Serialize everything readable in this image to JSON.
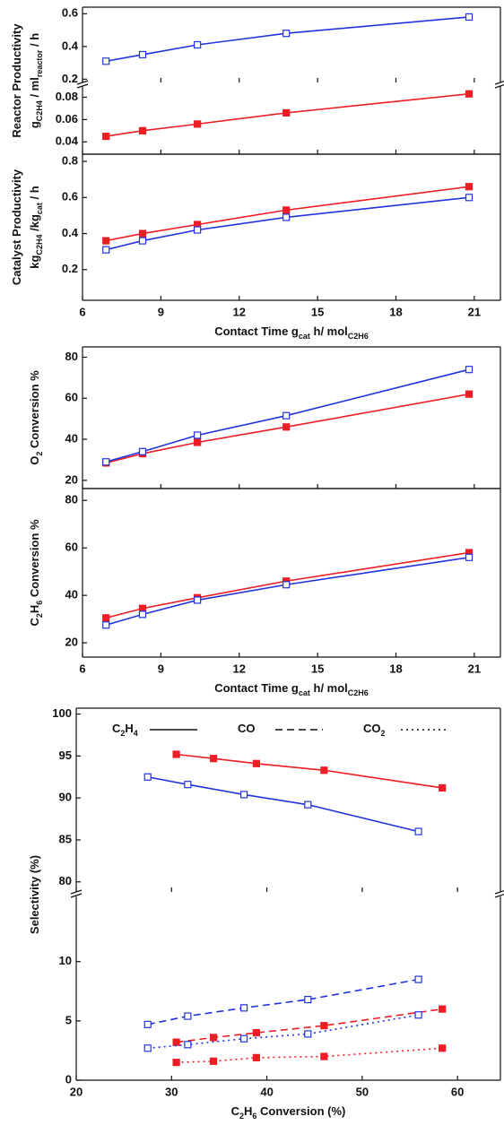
{
  "chart_data": [
    {
      "type": "line",
      "xlim": [
        6,
        22
      ],
      "xticks": [
        6,
        9,
        12,
        15,
        18,
        21
      ],
      "ylim": [
        0.18,
        0.64
      ],
      "yticks": [
        0.2,
        0.4,
        0.6
      ],
      "ylabel": [
        [
          {
            "text": "Reactor Productivity"
          }
        ],
        [
          {
            "text": "g"
          },
          {
            "text": "C2H4",
            "sub": true
          },
          {
            "text": " / ml"
          },
          {
            "text": "reactor",
            "sub": true
          },
          {
            "text": " / h"
          }
        ]
      ],
      "x": [
        6.9,
        8.3,
        10.4,
        13.8,
        20.8
      ],
      "series": [
        {
          "color": "#2233dd",
          "marker": "square-open",
          "dash": "solid",
          "values": [
            0.31,
            0.35,
            0.41,
            0.48,
            0.58
          ]
        }
      ]
    },
    {
      "type": "line",
      "xlim": [
        6,
        22
      ],
      "xticks": [
        6,
        9,
        12,
        15,
        18,
        21
      ],
      "ylim": [
        0.029,
        0.09
      ],
      "yticks": [
        0.04,
        0.06,
        0.08
      ],
      "x": [
        6.9,
        8.3,
        10.4,
        13.8,
        20.8
      ],
      "series": [
        {
          "color": "#ee1c25",
          "marker": "square-filled",
          "dash": "solid",
          "values": [
            0.045,
            0.05,
            0.056,
            0.066,
            0.083
          ]
        }
      ]
    },
    {
      "type": "line",
      "xlim": [
        6,
        22
      ],
      "xticks": [
        6,
        9,
        12,
        15,
        18,
        21
      ],
      "ylim": [
        0.03,
        0.84
      ],
      "yticks": [
        0.2,
        0.4,
        0.6,
        0.8
      ],
      "ylabel": [
        [
          {
            "text": "Catalyst Productivity"
          }
        ],
        [
          {
            "text": "kg"
          },
          {
            "text": "C2H4",
            "sub": true
          },
          {
            "text": " /kg"
          },
          {
            "text": "cat",
            "sub": true
          },
          {
            "text": " / h"
          }
        ]
      ],
      "xlabel": [
        {
          "text": "Contact Time g"
        },
        {
          "text": "cat",
          "sub": true
        },
        {
          "text": " h/ mol"
        },
        {
          "text": "C2H6",
          "sub": true
        }
      ],
      "x": [
        6.9,
        8.3,
        10.4,
        13.8,
        20.8
      ],
      "series": [
        {
          "color": "#ee1c25",
          "marker": "square-filled",
          "dash": "solid",
          "values": [
            0.36,
            0.4,
            0.45,
            0.53,
            0.66
          ]
        },
        {
          "color": "#2233dd",
          "marker": "square-open",
          "dash": "solid",
          "values": [
            0.31,
            0.36,
            0.42,
            0.49,
            0.6
          ]
        }
      ]
    },
    {
      "type": "line",
      "xlim": [
        6,
        22
      ],
      "xticks": [
        6,
        9,
        12,
        15,
        18,
        21
      ],
      "ylim": [
        16,
        85
      ],
      "yticks": [
        20,
        40,
        60,
        80
      ],
      "ylabel": [
        [
          {
            "text": "O"
          },
          {
            "text": "2",
            "sub": true
          },
          {
            "text": " Conversion  %"
          }
        ]
      ],
      "x": [
        6.9,
        8.3,
        10.4,
        13.8,
        20.8
      ],
      "series": [
        {
          "color": "#ee1c25",
          "marker": "square-filled",
          "dash": "solid",
          "values": [
            28.5,
            33,
            38.5,
            46,
            62
          ]
        },
        {
          "color": "#2233dd",
          "marker": "square-open",
          "dash": "solid",
          "values": [
            29,
            34,
            42,
            51.5,
            74
          ]
        }
      ]
    },
    {
      "type": "line",
      "xlim": [
        6,
        22
      ],
      "xticks": [
        6,
        9,
        12,
        15,
        18,
        21
      ],
      "ylim": [
        14,
        85
      ],
      "yticks": [
        20,
        40,
        60,
        80
      ],
      "ylabel": [
        [
          {
            "text": "C"
          },
          {
            "text": "2",
            "sub": true
          },
          {
            "text": "H"
          },
          {
            "text": "6",
            "sub": true
          },
          {
            "text": " Conversion  %"
          }
        ]
      ],
      "xlabel": [
        {
          "text": "Contact Time g"
        },
        {
          "text": "cat",
          "sub": true
        },
        {
          "text": " h/ mol"
        },
        {
          "text": "C2H6",
          "sub": true
        }
      ],
      "x": [
        6.9,
        8.3,
        10.4,
        13.8,
        20.8
      ],
      "series": [
        {
          "color": "#ee1c25",
          "marker": "square-filled",
          "dash": "solid",
          "values": [
            30.5,
            34.5,
            39,
            46,
            58
          ]
        },
        {
          "color": "#2233dd",
          "marker": "square-open",
          "dash": "solid",
          "values": [
            27.5,
            32,
            38,
            44.5,
            56
          ]
        }
      ]
    },
    {
      "type": "line",
      "xlim": [
        20,
        64.5
      ],
      "xticks": [
        20,
        30,
        40,
        50,
        60
      ],
      "ylim": [
        78.8,
        100.7
      ],
      "yticks": [
        80,
        85,
        90,
        95,
        100
      ],
      "ylabel": [
        [
          {
            "text": "Selectivity (%)"
          }
        ]
      ],
      "legend": [
        {
          "label": [
            {
              "text": "C"
            },
            {
              "text": "2",
              "sub": true
            },
            {
              "text": "H"
            },
            {
              "text": "4",
              "sub": true
            }
          ],
          "dash": "solid"
        },
        {
          "label": [
            {
              "text": "CO"
            }
          ],
          "dash": "dashed"
        },
        {
          "label": [
            {
              "text": "CO"
            },
            {
              "text": "2",
              "sub": true
            }
          ],
          "dash": "dotted"
        }
      ],
      "series": [
        {
          "color": "#ee1c25",
          "marker": "square-filled",
          "dash": "solid",
          "x": [
            30.5,
            34.4,
            38.9,
            46.0,
            58.4
          ],
          "values": [
            95.2,
            94.7,
            94.1,
            93.3,
            91.2
          ]
        },
        {
          "color": "#2233dd",
          "marker": "square-open",
          "dash": "solid",
          "x": [
            27.5,
            31.7,
            37.6,
            44.3,
            55.9
          ],
          "values": [
            92.5,
            91.6,
            90.4,
            89.2,
            86.0
          ]
        }
      ]
    },
    {
      "type": "line",
      "xlim": [
        20,
        64.5
      ],
      "xticks": [
        20,
        30,
        40,
        50,
        60
      ],
      "ylim": [
        0,
        15.5
      ],
      "yticks": [
        0,
        5,
        10
      ],
      "xlabel": [
        {
          "text": "C"
        },
        {
          "text": "2",
          "sub": true
        },
        {
          "text": "H"
        },
        {
          "text": "6",
          "sub": true
        },
        {
          "text": " Conversion (%)"
        }
      ],
      "series": [
        {
          "color": "#2233dd",
          "marker": "square-open",
          "dash": "dashed",
          "x": [
            27.5,
            31.7,
            37.6,
            44.3,
            55.9
          ],
          "values": [
            4.7,
            5.4,
            6.1,
            6.8,
            8.5
          ]
        },
        {
          "color": "#ee1c25",
          "marker": "square-filled",
          "dash": "dashed",
          "x": [
            30.5,
            34.4,
            38.9,
            46.0,
            58.4
          ],
          "values": [
            3.2,
            3.6,
            4.0,
            4.6,
            6.0
          ]
        },
        {
          "color": "#2233dd",
          "marker": "square-open",
          "dash": "dotted",
          "x": [
            27.5,
            31.7,
            37.6,
            44.3,
            55.9
          ],
          "values": [
            2.7,
            3.0,
            3.5,
            3.9,
            5.5
          ]
        },
        {
          "color": "#ee1c25",
          "marker": "square-filled",
          "dash": "dotted",
          "x": [
            30.5,
            34.4,
            38.9,
            46.0,
            58.4
          ],
          "values": [
            1.5,
            1.6,
            1.9,
            2.0,
            2.7
          ]
        }
      ]
    }
  ]
}
